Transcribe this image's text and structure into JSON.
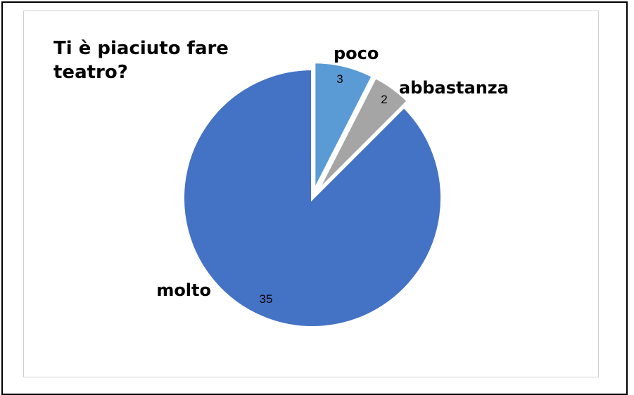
{
  "chart_data": {
    "type": "pie",
    "title": "Ti è piaciuto fare teatro?",
    "categories": [
      "poco",
      "abbastanza",
      "molto"
    ],
    "values": [
      3,
      2,
      35
    ],
    "colors": [
      "#5b9bd5",
      "#a5a5a5",
      "#4472c4"
    ],
    "exploded": true,
    "data_labels": true,
    "legend": "none"
  }
}
